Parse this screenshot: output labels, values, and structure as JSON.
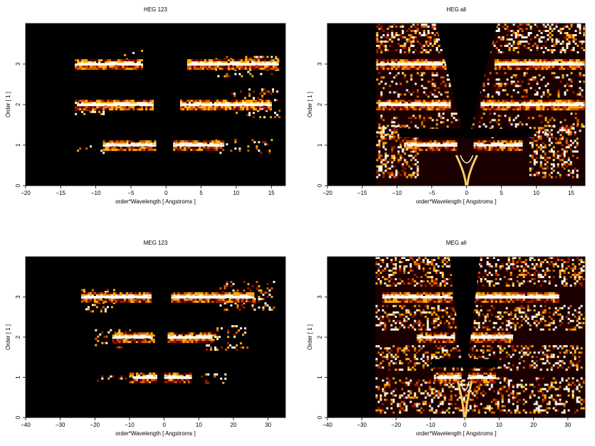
{
  "chart_data": [
    {
      "type": "heatmap",
      "title": "HEG 123",
      "xlabel": "order*Wavelength [ Angstroms ]",
      "ylabel": "Order [ 1 ]",
      "xlim": [
        -20,
        17
      ],
      "ylim": [
        0,
        4
      ],
      "xticks": [
        -20,
        -15,
        -10,
        -5,
        0,
        5,
        10,
        15
      ],
      "yticks": [
        0,
        1,
        2,
        3
      ],
      "xtick_labels": [
        "−20",
        "−15",
        "−10",
        "−5",
        "0",
        "5",
        "10",
        "15"
      ],
      "ytick_labels": [
        "0",
        "1",
        "2",
        "3"
      ],
      "colormap": [
        "#000000",
        "#5a0000",
        "#a01800",
        "#e05a00",
        "#ffb000",
        "#fff2c8",
        "#ffffff"
      ],
      "bands": [
        {
          "order": 3,
          "x": [
            -13,
            -3.5
          ],
          "density": 0.95
        },
        {
          "order": 3,
          "x": [
            3,
            16
          ],
          "density": 0.95
        },
        {
          "order": 2,
          "x": [
            -13,
            -2
          ],
          "density": 0.95
        },
        {
          "order": 2,
          "x": [
            2,
            15
          ],
          "density": 0.95
        },
        {
          "order": 1,
          "x": [
            -9,
            -1.5
          ],
          "density": 0.9
        },
        {
          "order": 1,
          "x": [
            1,
            8
          ],
          "density": 0.9
        }
      ],
      "scatter_regions": [
        {
          "x": [
            -13,
            -9
          ],
          "y": [
            0.8,
            1.15
          ],
          "density": 0.1
        },
        {
          "x": [
            7,
            15
          ],
          "y": [
            0.8,
            1.15
          ],
          "density": 0.15
        },
        {
          "x": [
            9,
            16
          ],
          "y": [
            1.7,
            2.4
          ],
          "density": 0.2
        },
        {
          "x": [
            7,
            16
          ],
          "y": [
            2.7,
            3.2
          ],
          "density": 0.2
        },
        {
          "x": [
            -6,
            -3.5
          ],
          "y": [
            3.05,
            3.35
          ],
          "density": 0.15
        },
        {
          "x": [
            -13,
            -9
          ],
          "y": [
            1.75,
            1.95
          ],
          "density": 0.3
        }
      ],
      "features": []
    },
    {
      "type": "heatmap",
      "title": "HEG all",
      "xlabel": "order*Wavelength [ Angstroms ]",
      "ylabel": "Order [ 1 ]",
      "xlim": [
        -20,
        17
      ],
      "ylim": [
        0,
        4
      ],
      "xticks": [
        -20,
        -15,
        -10,
        -5,
        0,
        5,
        10,
        15
      ],
      "yticks": [
        0,
        1,
        2,
        3
      ],
      "xtick_labels": [
        "−20",
        "−15",
        "−10",
        "−5",
        "0",
        "5",
        "10",
        "15"
      ],
      "ytick_labels": [
        "0",
        "1",
        "2",
        "3"
      ],
      "colormap": [
        "#000000",
        "#5a0000",
        "#a01800",
        "#e05a00",
        "#ffb000",
        "#fff2c8",
        "#ffffff"
      ],
      "data_x_range": [
        -13,
        17
      ],
      "bands": [
        {
          "order": 3,
          "x": [
            -13,
            -3
          ],
          "density": 0.95
        },
        {
          "order": 3,
          "x": [
            4,
            17
          ],
          "density": 0.95
        },
        {
          "order": 2,
          "x": [
            -13,
            -2.5
          ],
          "density": 0.95
        },
        {
          "order": 2,
          "x": [
            2,
            17
          ],
          "density": 0.95
        },
        {
          "order": 1,
          "x": [
            -9,
            -1.5
          ],
          "density": 0.9
        },
        {
          "order": 1,
          "x": [
            1,
            8
          ],
          "density": 0.9
        }
      ],
      "scatter_regions": [
        {
          "x": [
            -13,
            17
          ],
          "y": [
            3.3,
            4
          ],
          "density": 0.35
        },
        {
          "x": [
            -13,
            17
          ],
          "y": [
            2.2,
            2.8
          ],
          "density": 0.2
        },
        {
          "x": [
            -13,
            17
          ],
          "y": [
            1.2,
            1.8
          ],
          "density": 0.15
        },
        {
          "x": [
            -13,
            -7
          ],
          "y": [
            0.2,
            1.5
          ],
          "density": 0.45
        },
        {
          "x": [
            9,
            16
          ],
          "y": [
            0.2,
            1.5
          ],
          "density": 0.35
        }
      ],
      "features": [
        {
          "kind": "v-gap",
          "x": [
            -2,
            2
          ],
          "y": [
            1.15,
            4
          ]
        },
        {
          "kind": "v-arms",
          "x": [
            -1.5,
            1.5
          ],
          "y": [
            0,
            0.75
          ]
        }
      ]
    },
    {
      "type": "heatmap",
      "title": "MEG 123",
      "xlabel": "order*Wavelength [ Angstroms ]",
      "ylabel": "Order [ 1 ]",
      "xlim": [
        -40,
        35
      ],
      "ylim": [
        0,
        4
      ],
      "xticks": [
        -40,
        -30,
        -20,
        -10,
        0,
        10,
        20,
        30
      ],
      "yticks": [
        0,
        1,
        2,
        3
      ],
      "xtick_labels": [
        "−40",
        "−30",
        "−20",
        "−10",
        "0",
        "10",
        "20",
        "30"
      ],
      "ytick_labels": [
        "0",
        "1",
        "2",
        "3"
      ],
      "colormap": [
        "#000000",
        "#5a0000",
        "#a01800",
        "#e05a00",
        "#ffb000",
        "#fff2c8",
        "#ffffff"
      ],
      "bands": [
        {
          "order": 3,
          "x": [
            -24,
            -4
          ],
          "density": 0.95
        },
        {
          "order": 3,
          "x": [
            2,
            26
          ],
          "density": 0.95
        },
        {
          "order": 2,
          "x": [
            -15,
            -3
          ],
          "density": 0.9
        },
        {
          "order": 2,
          "x": [
            1,
            14
          ],
          "density": 0.9
        },
        {
          "order": 1,
          "x": [
            -10,
            -2
          ],
          "density": 0.9
        },
        {
          "order": 1,
          "x": [
            0,
            8
          ],
          "density": 0.9
        }
      ],
      "scatter_regions": [
        {
          "x": [
            -24,
            -14
          ],
          "y": [
            2.65,
            3.2
          ],
          "density": 0.2
        },
        {
          "x": [
            16,
            32
          ],
          "y": [
            2.7,
            3.4
          ],
          "density": 0.2
        },
        {
          "x": [
            -20,
            -10
          ],
          "y": [
            1.75,
            2.2
          ],
          "density": 0.2
        },
        {
          "x": [
            12,
            24
          ],
          "y": [
            1.7,
            2.3
          ],
          "density": 0.2
        },
        {
          "x": [
            -20,
            -10
          ],
          "y": [
            0.9,
            1.05
          ],
          "density": 0.2
        },
        {
          "x": [
            10,
            18
          ],
          "y": [
            0.85,
            1.1
          ],
          "density": 0.2
        }
      ],
      "features": []
    },
    {
      "type": "heatmap",
      "title": "MEG all",
      "xlabel": "order*Wavelength [ Angstroms ]",
      "ylabel": "Order [ 1 ]",
      "xlim": [
        -40,
        35
      ],
      "ylim": [
        0,
        4
      ],
      "xticks": [
        -40,
        -30,
        -20,
        -10,
        0,
        10,
        20,
        30
      ],
      "yticks": [
        0,
        1,
        2,
        3
      ],
      "xtick_labels": [
        "−40",
        "−30",
        "−20",
        "−10",
        "0",
        "10",
        "20",
        "30"
      ],
      "ytick_labels": [
        "0",
        "1",
        "2",
        "3"
      ],
      "colormap": [
        "#000000",
        "#5a0000",
        "#a01800",
        "#e05a00",
        "#ffb000",
        "#fff2c8",
        "#ffffff"
      ],
      "data_x_range": [
        -26,
        35
      ],
      "bands": [
        {
          "order": 3,
          "x": [
            -24,
            -4
          ],
          "density": 0.95
        },
        {
          "order": 3,
          "x": [
            2,
            27
          ],
          "density": 0.95
        },
        {
          "order": 2,
          "x": [
            -14,
            -3
          ],
          "density": 0.9
        },
        {
          "order": 2,
          "x": [
            1,
            14
          ],
          "density": 0.9
        },
        {
          "order": 1,
          "x": [
            -9,
            -1.5
          ],
          "density": 0.9
        },
        {
          "order": 1,
          "x": [
            1,
            9
          ],
          "density": 0.9
        }
      ],
      "scatter_regions": [
        {
          "x": [
            -26,
            35
          ],
          "y": [
            3.3,
            4
          ],
          "density": 0.35
        },
        {
          "x": [
            -26,
            35
          ],
          "y": [
            2.2,
            2.8
          ],
          "density": 0.3
        },
        {
          "x": [
            -26,
            35
          ],
          "y": [
            1.2,
            1.8
          ],
          "density": 0.3
        },
        {
          "x": [
            -26,
            35
          ],
          "y": [
            0.1,
            1.0
          ],
          "density": 0.3
        }
      ],
      "features": [
        {
          "kind": "v-gap",
          "x": [
            -2,
            2
          ],
          "y": [
            1.2,
            4
          ]
        },
        {
          "kind": "v-arms",
          "x": [
            -2,
            2
          ],
          "y": [
            0,
            0.9
          ]
        }
      ]
    }
  ]
}
